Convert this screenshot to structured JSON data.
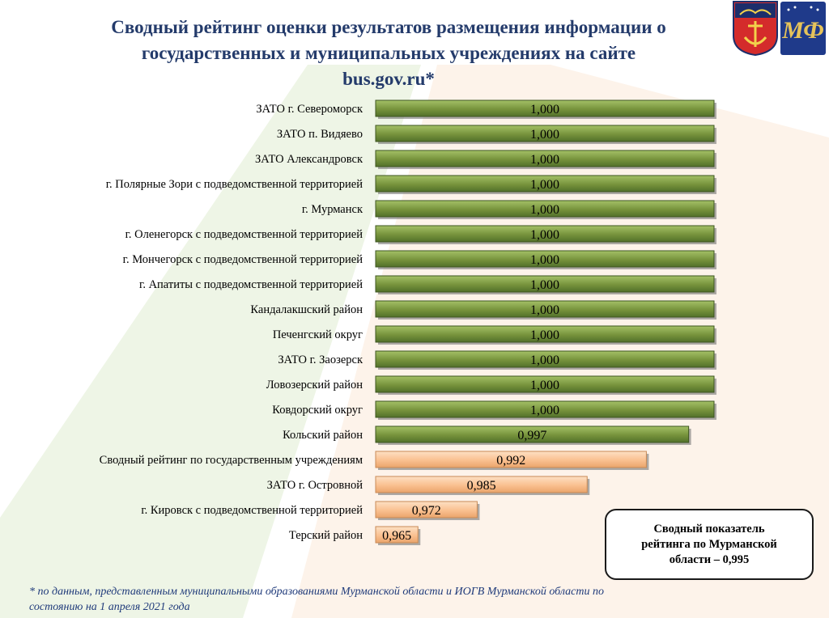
{
  "header": {
    "title_line1": "Сводный рейтинг оценки результатов размещения  информации о",
    "title_line2": "государственных и муниципальных учреждениях на сайте",
    "title_line3": "bus.gov.ru*"
  },
  "emblem": {
    "left_icon": "murmansk-coat-of-arms-icon",
    "right_icon": "mf-logo-icon",
    "right_text": "МФ"
  },
  "summary_box": {
    "line1": "Сводный показатель",
    "line2": "рейтинга по Мурманской",
    "line3": "области – 0,995"
  },
  "footnote": {
    "line1": "* по данным, представленным  муниципальными образованиями Мурманской области и ИОГВ Мурманской области по",
    "line2": "состоянию на 1 апреля 2021 года"
  },
  "colors": {
    "green_bar": "#77933c",
    "orange_bar": "#fac090",
    "title": "#243b6b",
    "footnote": "#1f3a7a"
  },
  "chart_data": {
    "type": "bar",
    "orientation": "horizontal",
    "categories": [
      "ЗАТО г. Североморск",
      "ЗАТО п. Видяево",
      "ЗАТО Александровск",
      "г. Полярные Зори  с подведомственной территорией",
      "г. Мурманск",
      "г. Оленегорск  с подведомственной территорией",
      "г. Мончегорск  с подведомственной территорией",
      "г. Апатиты  с подведомственной территорией",
      "Кандалакшский район",
      "Печенгский округ",
      "ЗАТО г. Заозерск",
      "Ловозерский район",
      "Ковдорский округ",
      "Кольский район",
      "Сводный рейтинг по государственным учреждениям",
      "ЗАТО г. Островной",
      "г. Кировск с подведомственной территорией",
      "Терский район"
    ],
    "values": [
      1.0,
      1.0,
      1.0,
      1.0,
      1.0,
      1.0,
      1.0,
      1.0,
      1.0,
      1.0,
      1.0,
      1.0,
      1.0,
      0.997,
      0.992,
      0.985,
      0.972,
      0.965
    ],
    "value_labels": [
      "1,000",
      "1,000",
      "1,000",
      "1,000",
      "1,000",
      "1,000",
      "1,000",
      "1,000",
      "1,000",
      "1,000",
      "1,000",
      "1,000",
      "1,000",
      "0,997",
      "0,992",
      "0,985",
      "0,972",
      "0,965"
    ],
    "bar_colors": [
      "green",
      "green",
      "green",
      "green",
      "green",
      "green",
      "green",
      "green",
      "green",
      "green",
      "green",
      "green",
      "green",
      "green",
      "orange",
      "orange",
      "orange",
      "orange"
    ],
    "xlim": [
      0.96,
      1.0
    ],
    "grid": false,
    "legend": "none"
  }
}
